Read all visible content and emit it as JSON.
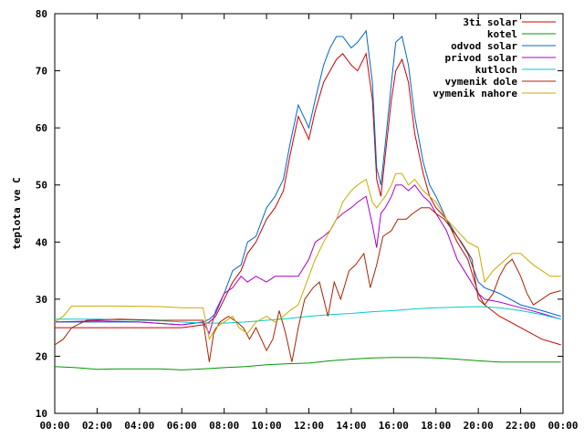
{
  "chart_data": {
    "type": "line",
    "title": "",
    "xlabel": "",
    "ylabel": "teplota ve C",
    "xlim": [
      0,
      24
    ],
    "ylim": [
      10,
      80
    ],
    "grid": false,
    "legend_position": "top-right",
    "x_ticks": [
      {
        "v": 0,
        "label": "00:00"
      },
      {
        "v": 2,
        "label": "02:00"
      },
      {
        "v": 4,
        "label": "04:00"
      },
      {
        "v": 6,
        "label": "06:00"
      },
      {
        "v": 8,
        "label": "08:00"
      },
      {
        "v": 10,
        "label": "10:00"
      },
      {
        "v": 12,
        "label": "12:00"
      },
      {
        "v": 14,
        "label": "14:00"
      },
      {
        "v": 16,
        "label": "16:00"
      },
      {
        "v": 18,
        "label": "18:00"
      },
      {
        "v": 20,
        "label": "20:00"
      },
      {
        "v": 22,
        "label": "22:00"
      },
      {
        "v": 24,
        "label": "00:00"
      }
    ],
    "y_ticks": [
      {
        "v": 10,
        "label": "10"
      },
      {
        "v": 20,
        "label": "20"
      },
      {
        "v": 30,
        "label": "30"
      },
      {
        "v": 40,
        "label": "40"
      },
      {
        "v": 50,
        "label": "50"
      },
      {
        "v": 60,
        "label": "60"
      },
      {
        "v": 70,
        "label": "70"
      },
      {
        "v": 80,
        "label": "80"
      }
    ],
    "series": [
      {
        "name": "3ti solar",
        "color": "#cc0000",
        "points": [
          [
            0,
            25
          ],
          [
            2,
            25
          ],
          [
            4,
            25
          ],
          [
            6,
            25
          ],
          [
            7,
            25.5
          ],
          [
            7.3,
            26
          ],
          [
            7.6,
            27
          ],
          [
            8,
            30
          ],
          [
            8.4,
            33
          ],
          [
            8.8,
            35
          ],
          [
            9.1,
            38
          ],
          [
            9.5,
            40
          ],
          [
            10,
            44
          ],
          [
            10.4,
            46
          ],
          [
            10.8,
            49
          ],
          [
            11.1,
            55
          ],
          [
            11.5,
            62
          ],
          [
            12,
            58
          ],
          [
            12.3,
            63
          ],
          [
            12.7,
            68
          ],
          [
            13,
            70
          ],
          [
            13.3,
            72
          ],
          [
            13.6,
            73
          ],
          [
            14,
            71
          ],
          [
            14.3,
            70
          ],
          [
            14.7,
            73
          ],
          [
            15,
            65
          ],
          [
            15.2,
            51
          ],
          [
            15.4,
            48
          ],
          [
            15.6,
            55
          ],
          [
            15.9,
            65
          ],
          [
            16.1,
            70
          ],
          [
            16.4,
            72
          ],
          [
            16.7,
            68
          ],
          [
            17,
            59
          ],
          [
            17.4,
            52
          ],
          [
            17.7,
            48
          ],
          [
            18,
            46
          ],
          [
            18.5,
            44
          ],
          [
            19,
            40
          ],
          [
            19.5,
            37
          ],
          [
            20,
            31
          ],
          [
            20.3,
            29
          ],
          [
            21,
            27
          ],
          [
            22,
            25
          ],
          [
            23,
            23
          ],
          [
            23.9,
            22
          ]
        ]
      },
      {
        "name": "kotel",
        "color": "#009900",
        "points": [
          [
            0,
            18.2
          ],
          [
            1,
            18.0
          ],
          [
            2,
            17.7
          ],
          [
            3,
            17.8
          ],
          [
            4,
            17.8
          ],
          [
            5,
            17.8
          ],
          [
            6,
            17.6
          ],
          [
            7,
            17.8
          ],
          [
            8,
            18.0
          ],
          [
            9,
            18.2
          ],
          [
            10,
            18.5
          ],
          [
            11,
            18.7
          ],
          [
            12,
            18.8
          ],
          [
            13,
            19.2
          ],
          [
            14,
            19.5
          ],
          [
            15,
            19.7
          ],
          [
            16,
            19.8
          ],
          [
            17,
            19.8
          ],
          [
            18,
            19.7
          ],
          [
            19,
            19.5
          ],
          [
            20,
            19.2
          ],
          [
            21,
            19.0
          ],
          [
            22,
            19.0
          ],
          [
            23,
            19.0
          ],
          [
            23.9,
            19.0
          ]
        ]
      },
      {
        "name": "odvod solar",
        "color": "#0066cc",
        "points": [
          [
            0,
            26
          ],
          [
            2,
            26
          ],
          [
            4,
            26
          ],
          [
            6,
            25.5
          ],
          [
            7,
            26
          ],
          [
            7.3,
            26.5
          ],
          [
            7.6,
            27.5
          ],
          [
            8,
            31
          ],
          [
            8.4,
            35
          ],
          [
            8.8,
            36
          ],
          [
            9.1,
            40
          ],
          [
            9.5,
            41
          ],
          [
            10,
            46
          ],
          [
            10.4,
            48
          ],
          [
            10.8,
            51
          ],
          [
            11.1,
            57
          ],
          [
            11.5,
            64
          ],
          [
            12,
            60
          ],
          [
            12.3,
            65
          ],
          [
            12.7,
            71
          ],
          [
            13,
            74
          ],
          [
            13.3,
            76
          ],
          [
            13.6,
            76
          ],
          [
            14,
            74
          ],
          [
            14.3,
            75
          ],
          [
            14.7,
            77
          ],
          [
            15,
            68
          ],
          [
            15.2,
            53
          ],
          [
            15.4,
            50
          ],
          [
            15.6,
            57
          ],
          [
            15.9,
            68
          ],
          [
            16.1,
            75
          ],
          [
            16.4,
            76
          ],
          [
            16.7,
            71
          ],
          [
            17,
            62
          ],
          [
            17.4,
            54
          ],
          [
            17.7,
            50
          ],
          [
            18,
            48
          ],
          [
            18.5,
            44
          ],
          [
            19,
            41
          ],
          [
            19.5,
            38
          ],
          [
            20,
            33
          ],
          [
            20.3,
            32
          ],
          [
            21,
            31
          ],
          [
            22,
            29
          ],
          [
            23,
            28
          ],
          [
            23.9,
            27
          ]
        ]
      },
      {
        "name": "privod solar",
        "color": "#aa00cc",
        "points": [
          [
            0,
            26
          ],
          [
            2,
            26.2
          ],
          [
            4,
            26
          ],
          [
            6,
            25.5
          ],
          [
            7,
            26
          ],
          [
            7.3,
            24
          ],
          [
            7.6,
            28
          ],
          [
            8,
            31
          ],
          [
            8.4,
            32
          ],
          [
            8.8,
            34
          ],
          [
            9.1,
            33
          ],
          [
            9.5,
            34
          ],
          [
            10,
            33
          ],
          [
            10.4,
            34
          ],
          [
            10.8,
            34
          ],
          [
            11.1,
            34
          ],
          [
            11.5,
            34
          ],
          [
            12,
            37
          ],
          [
            12.3,
            40
          ],
          [
            12.7,
            41
          ],
          [
            13,
            42
          ],
          [
            13.3,
            44
          ],
          [
            13.6,
            45
          ],
          [
            14,
            46
          ],
          [
            14.3,
            47
          ],
          [
            14.7,
            48
          ],
          [
            15,
            43
          ],
          [
            15.2,
            39
          ],
          [
            15.4,
            45
          ],
          [
            15.6,
            46
          ],
          [
            15.9,
            48
          ],
          [
            16.1,
            50
          ],
          [
            16.4,
            50
          ],
          [
            16.7,
            49
          ],
          [
            17,
            50
          ],
          [
            17.4,
            48
          ],
          [
            17.7,
            47
          ],
          [
            18,
            45
          ],
          [
            18.5,
            42
          ],
          [
            19,
            37
          ],
          [
            19.5,
            34
          ],
          [
            20,
            31
          ],
          [
            20.3,
            30
          ],
          [
            21,
            29.5
          ],
          [
            22,
            28.5
          ],
          [
            23,
            27.5
          ],
          [
            23.9,
            26.5
          ]
        ]
      },
      {
        "name": "kutloch",
        "color": "#00cccc",
        "points": [
          [
            0,
            26.5
          ],
          [
            1,
            26.5
          ],
          [
            2,
            26.5
          ],
          [
            3,
            26.4
          ],
          [
            4,
            26.3
          ],
          [
            5,
            26.2
          ],
          [
            6,
            26.0
          ],
          [
            7,
            25.8
          ],
          [
            8,
            25.8
          ],
          [
            9,
            26.0
          ],
          [
            10,
            26.3
          ],
          [
            11,
            26.6
          ],
          [
            12,
            27.0
          ],
          [
            13,
            27.3
          ],
          [
            14,
            27.5
          ],
          [
            15,
            27.8
          ],
          [
            16,
            28.0
          ],
          [
            17,
            28.3
          ],
          [
            18,
            28.5
          ],
          [
            19,
            28.6
          ],
          [
            20,
            28.7
          ],
          [
            21,
            28.5
          ],
          [
            22,
            28.0
          ],
          [
            23,
            27.3
          ],
          [
            23.9,
            26.5
          ]
        ]
      },
      {
        "name": "vymenik dole",
        "color": "#aa2200",
        "points": [
          [
            0,
            22
          ],
          [
            0.4,
            23
          ],
          [
            0.8,
            25
          ],
          [
            1.5,
            26.3
          ],
          [
            3,
            26.5
          ],
          [
            5,
            26.3
          ],
          [
            6,
            26.3
          ],
          [
            7,
            26.3
          ],
          [
            7.3,
            19
          ],
          [
            7.5,
            24
          ],
          [
            7.8,
            26
          ],
          [
            8.2,
            27
          ],
          [
            8.6,
            26
          ],
          [
            8.9,
            25
          ],
          [
            9.2,
            23
          ],
          [
            9.5,
            25
          ],
          [
            10,
            21
          ],
          [
            10.3,
            23
          ],
          [
            10.6,
            28
          ],
          [
            10.9,
            24
          ],
          [
            11.2,
            19
          ],
          [
            11.5,
            25
          ],
          [
            11.8,
            30
          ],
          [
            12.2,
            32
          ],
          [
            12.5,
            33
          ],
          [
            12.9,
            27
          ],
          [
            13.2,
            33
          ],
          [
            13.5,
            30
          ],
          [
            13.9,
            35
          ],
          [
            14.2,
            36
          ],
          [
            14.6,
            38
          ],
          [
            14.9,
            32
          ],
          [
            15.2,
            36
          ],
          [
            15.5,
            41
          ],
          [
            15.9,
            42
          ],
          [
            16.2,
            44
          ],
          [
            16.6,
            44
          ],
          [
            16.9,
            45
          ],
          [
            17.3,
            46
          ],
          [
            17.7,
            46
          ],
          [
            18,
            45
          ],
          [
            18.4,
            44
          ],
          [
            18.8,
            42
          ],
          [
            19.2,
            40
          ],
          [
            19.7,
            37
          ],
          [
            20,
            30
          ],
          [
            20.3,
            29
          ],
          [
            20.7,
            31
          ],
          [
            21,
            34
          ],
          [
            21.3,
            36
          ],
          [
            21.6,
            37
          ],
          [
            22,
            34
          ],
          [
            22.3,
            31
          ],
          [
            22.6,
            29
          ],
          [
            23,
            30
          ],
          [
            23.4,
            31
          ],
          [
            23.9,
            31.5
          ]
        ]
      },
      {
        "name": "vymenik nahore",
        "color": "#ccaa00",
        "points": [
          [
            0,
            26
          ],
          [
            0.4,
            27
          ],
          [
            0.8,
            28.8
          ],
          [
            1.5,
            28.8
          ],
          [
            3,
            28.8
          ],
          [
            5,
            28.7
          ],
          [
            6,
            28.5
          ],
          [
            7,
            28.5
          ],
          [
            7.3,
            23
          ],
          [
            7.6,
            25
          ],
          [
            8,
            26
          ],
          [
            8.4,
            27
          ],
          [
            8.7,
            25
          ],
          [
            9.1,
            24
          ],
          [
            9.5,
            26
          ],
          [
            10,
            27
          ],
          [
            10.4,
            26
          ],
          [
            10.8,
            27
          ],
          [
            11.1,
            28
          ],
          [
            11.5,
            29
          ],
          [
            12,
            34
          ],
          [
            12.3,
            37
          ],
          [
            12.7,
            40
          ],
          [
            13,
            42
          ],
          [
            13.3,
            44
          ],
          [
            13.6,
            47
          ],
          [
            14,
            49
          ],
          [
            14.3,
            50
          ],
          [
            14.7,
            51
          ],
          [
            15,
            47
          ],
          [
            15.2,
            46
          ],
          [
            15.4,
            47
          ],
          [
            15.6,
            48
          ],
          [
            15.9,
            50
          ],
          [
            16.1,
            52
          ],
          [
            16.4,
            52
          ],
          [
            16.7,
            50
          ],
          [
            17,
            51
          ],
          [
            17.4,
            49
          ],
          [
            17.7,
            48
          ],
          [
            18,
            47
          ],
          [
            18.5,
            44
          ],
          [
            19,
            42
          ],
          [
            19.5,
            40
          ],
          [
            20,
            39
          ],
          [
            20.3,
            33
          ],
          [
            20.7,
            35
          ],
          [
            21,
            36
          ],
          [
            21.3,
            37
          ],
          [
            21.6,
            38
          ],
          [
            22,
            38
          ],
          [
            22.3,
            37
          ],
          [
            22.6,
            36
          ],
          [
            23,
            35
          ],
          [
            23.4,
            34
          ],
          [
            23.9,
            34
          ]
        ]
      }
    ]
  }
}
